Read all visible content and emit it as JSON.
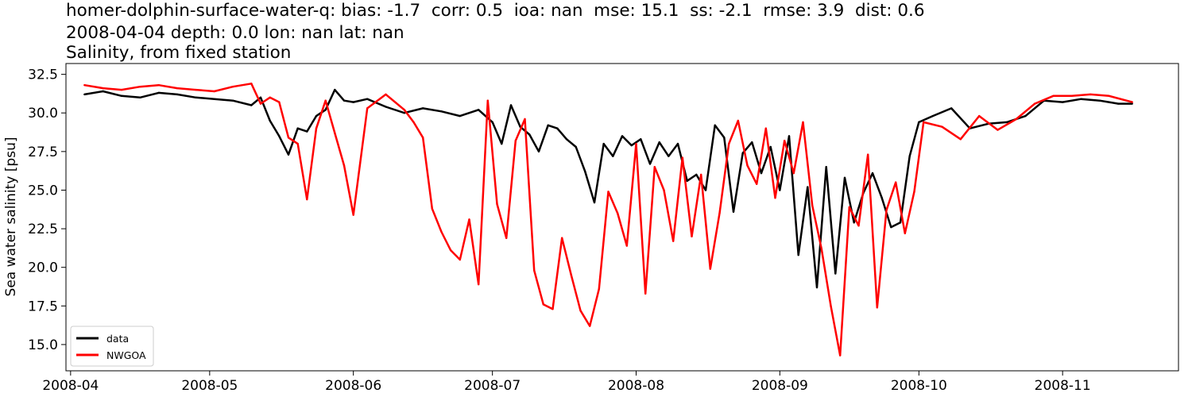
{
  "title_lines": [
    "homer-dolphin-surface-water-q: bias: -1.7  corr: 0.5  ioa: nan  mse: 15.1  ss: -2.1  rmse: 3.9  dist: 0.6",
    "2008-04-04 depth: 0.0 lon: nan lat: nan",
    "Salinity, from fixed station"
  ],
  "chart_data": {
    "type": "line",
    "title": "homer-dolphin-surface-water-q: bias: -1.7  corr: 0.5  ioa: nan  mse: 15.1  ss: -2.1  rmse: 3.9  dist: 0.6",
    "subtitle": "2008-04-04 depth: 0.0 lon: nan lat: nan",
    "subtitle2": "Salinity, from fixed station",
    "xlabel": "",
    "ylabel": "Sea water salinity [psu]",
    "xlim": [
      "2008-03-31",
      "2008-11-26"
    ],
    "ylim": [
      13.3,
      33.2
    ],
    "xticks": [
      "2008-04",
      "2008-05",
      "2008-06",
      "2008-07",
      "2008-08",
      "2008-09",
      "2008-10",
      "2008-11"
    ],
    "yticks": [
      "15.0",
      "17.5",
      "20.0",
      "22.5",
      "25.0",
      "27.5",
      "30.0",
      "32.5"
    ],
    "grid": false,
    "legend_position": "bottom-left",
    "series": [
      {
        "name": "data",
        "color": "#000000",
        "x": [
          "2008-04-04",
          "2008-04-08",
          "2008-04-12",
          "2008-04-16",
          "2008-04-20",
          "2008-04-24",
          "2008-04-28",
          "2008-05-02",
          "2008-05-06",
          "2008-05-10",
          "2008-05-12",
          "2008-05-14",
          "2008-05-16",
          "2008-05-18",
          "2008-05-20",
          "2008-05-22",
          "2008-05-24",
          "2008-05-26",
          "2008-05-28",
          "2008-05-30",
          "2008-06-01",
          "2008-06-04",
          "2008-06-08",
          "2008-06-12",
          "2008-06-16",
          "2008-06-20",
          "2008-06-24",
          "2008-06-28",
          "2008-07-01",
          "2008-07-03",
          "2008-07-05",
          "2008-07-07",
          "2008-07-09",
          "2008-07-11",
          "2008-07-13",
          "2008-07-15",
          "2008-07-17",
          "2008-07-19",
          "2008-07-21",
          "2008-07-23",
          "2008-07-25",
          "2008-07-27",
          "2008-07-29",
          "2008-07-31",
          "2008-08-02",
          "2008-08-04",
          "2008-08-06",
          "2008-08-08",
          "2008-08-10",
          "2008-08-12",
          "2008-08-14",
          "2008-08-16",
          "2008-08-18",
          "2008-08-20",
          "2008-08-22",
          "2008-08-24",
          "2008-08-26",
          "2008-08-28",
          "2008-08-30",
          "2008-09-01",
          "2008-09-03",
          "2008-09-05",
          "2008-09-07",
          "2008-09-09",
          "2008-09-11",
          "2008-09-13",
          "2008-09-15",
          "2008-09-17",
          "2008-09-19",
          "2008-09-21",
          "2008-09-23",
          "2008-09-25",
          "2008-09-27",
          "2008-09-29",
          "2008-10-01",
          "2008-10-04",
          "2008-10-08",
          "2008-10-12",
          "2008-10-16",
          "2008-10-20",
          "2008-10-24",
          "2008-10-28",
          "2008-11-01",
          "2008-11-05",
          "2008-11-09",
          "2008-11-13",
          "2008-11-16"
        ],
        "values": [
          31.2,
          31.4,
          31.1,
          31.0,
          31.3,
          31.2,
          31.0,
          30.9,
          30.8,
          30.5,
          31.0,
          29.5,
          28.5,
          27.3,
          29.0,
          28.8,
          29.8,
          30.2,
          31.5,
          30.8,
          30.7,
          30.9,
          30.4,
          30.0,
          30.3,
          30.1,
          29.8,
          30.2,
          29.4,
          28.0,
          30.5,
          29.1,
          28.6,
          27.5,
          29.2,
          29.0,
          28.3,
          27.8,
          26.2,
          24.2,
          28.0,
          27.2,
          28.5,
          27.9,
          28.3,
          26.7,
          28.1,
          27.2,
          28.0,
          25.6,
          26.0,
          25.0,
          29.2,
          28.4,
          23.6,
          27.4,
          28.1,
          26.1,
          27.8,
          25.0,
          28.5,
          20.8,
          25.2,
          18.7,
          26.5,
          19.6,
          25.8,
          22.9,
          24.8,
          26.1,
          24.5,
          22.6,
          22.9,
          27.2,
          29.4,
          29.8,
          30.3,
          29.0,
          29.3,
          29.4,
          29.8,
          30.8,
          30.7,
          30.9,
          30.8,
          30.6,
          30.6
        ]
      },
      {
        "name": "NWGOA",
        "color": "#ff0000",
        "x": [
          "2008-04-04",
          "2008-04-08",
          "2008-04-12",
          "2008-04-16",
          "2008-04-20",
          "2008-04-24",
          "2008-04-28",
          "2008-05-02",
          "2008-05-06",
          "2008-05-10",
          "2008-05-12",
          "2008-05-14",
          "2008-05-16",
          "2008-05-18",
          "2008-05-20",
          "2008-05-22",
          "2008-05-24",
          "2008-05-26",
          "2008-05-28",
          "2008-05-30",
          "2008-06-01",
          "2008-06-04",
          "2008-06-08",
          "2008-06-12",
          "2008-06-14",
          "2008-06-16",
          "2008-06-18",
          "2008-06-20",
          "2008-06-22",
          "2008-06-24",
          "2008-06-26",
          "2008-06-28",
          "2008-06-30",
          "2008-07-02",
          "2008-07-04",
          "2008-07-06",
          "2008-07-08",
          "2008-07-10",
          "2008-07-12",
          "2008-07-14",
          "2008-07-16",
          "2008-07-18",
          "2008-07-20",
          "2008-07-22",
          "2008-07-24",
          "2008-07-26",
          "2008-07-28",
          "2008-07-30",
          "2008-08-01",
          "2008-08-03",
          "2008-08-05",
          "2008-08-07",
          "2008-08-09",
          "2008-08-11",
          "2008-08-13",
          "2008-08-15",
          "2008-08-17",
          "2008-08-19",
          "2008-08-21",
          "2008-08-23",
          "2008-08-25",
          "2008-08-27",
          "2008-08-29",
          "2008-08-31",
          "2008-09-02",
          "2008-09-04",
          "2008-09-06",
          "2008-09-08",
          "2008-09-10",
          "2008-09-12",
          "2008-09-14",
          "2008-09-16",
          "2008-09-18",
          "2008-09-20",
          "2008-09-22",
          "2008-09-24",
          "2008-09-26",
          "2008-09-28",
          "2008-09-30",
          "2008-10-02",
          "2008-10-06",
          "2008-10-10",
          "2008-10-14",
          "2008-10-18",
          "2008-10-22",
          "2008-10-26",
          "2008-10-30",
          "2008-11-03",
          "2008-11-07",
          "2008-11-11",
          "2008-11-16"
        ],
        "values": [
          31.8,
          31.6,
          31.5,
          31.7,
          31.8,
          31.6,
          31.5,
          31.4,
          31.7,
          31.9,
          30.6,
          31.0,
          30.7,
          28.4,
          28.0,
          24.4,
          29.0,
          30.8,
          28.7,
          26.6,
          23.4,
          30.3,
          31.2,
          30.2,
          29.4,
          28.4,
          23.8,
          22.3,
          21.1,
          20.5,
          23.1,
          18.9,
          30.8,
          24.1,
          21.9,
          28.2,
          29.6,
          19.8,
          17.6,
          17.3,
          21.9,
          19.5,
          17.2,
          16.2,
          18.6,
          24.9,
          23.5,
          21.4,
          28.0,
          18.3,
          26.5,
          25.0,
          21.7,
          27.1,
          22.0,
          26.0,
          19.9,
          23.5,
          28.0,
          29.5,
          26.6,
          25.4,
          29.0,
          24.5,
          28.2,
          26.1,
          29.4,
          24.0,
          21.2,
          17.5,
          14.3,
          23.9,
          22.7,
          27.3,
          17.4,
          23.7,
          25.5,
          22.2,
          24.9,
          29.4,
          29.1,
          28.3,
          29.8,
          28.9,
          29.6,
          30.6,
          31.1,
          31.1,
          31.2,
          31.1,
          30.7
        ]
      }
    ]
  }
}
